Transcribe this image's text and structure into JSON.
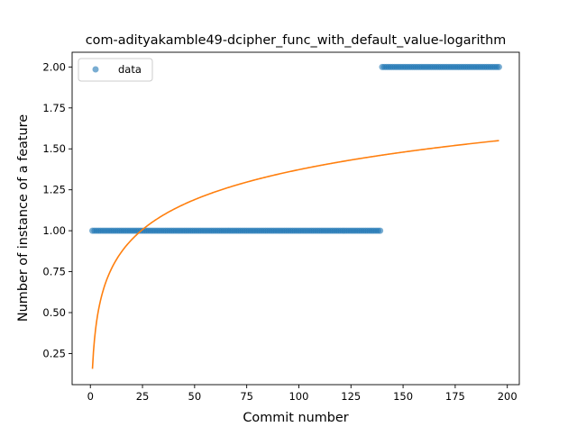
{
  "chart_data": {
    "type": "scatter",
    "title": "com-adityakamble49-dcipher_func_with_default_value-logarithm",
    "xlabel": "Commit number",
    "ylabel": "Number of instance of a feature",
    "xlim": [
      -8.75,
      205.75
    ],
    "ylim": [
      0.06,
      2.09
    ],
    "xticks": [
      0,
      25,
      50,
      75,
      100,
      125,
      150,
      175,
      200
    ],
    "yticks": [
      0.25,
      0.5,
      0.75,
      1.0,
      1.25,
      1.5,
      1.75,
      2.0
    ],
    "ytick_labels": [
      "0.25",
      "0.50",
      "0.75",
      "1.00",
      "1.25",
      "1.50",
      "1.75",
      "2.00"
    ],
    "legend": {
      "position": "top-left",
      "entries": [
        "data"
      ]
    },
    "grid": false,
    "series": [
      {
        "name": "data",
        "kind": "scatter",
        "color": "#1f77b4",
        "segments": [
          {
            "x_start": 1,
            "x_end": 139,
            "y": 1
          },
          {
            "x_start": 140,
            "x_end": 196,
            "y": 2
          }
        ]
      },
      {
        "kind": "line",
        "model": "logarithmic fit",
        "color": "#ff7f0e",
        "a": 0.1567,
        "b": 0.2641,
        "x_range": [
          1,
          196
        ]
      }
    ]
  }
}
